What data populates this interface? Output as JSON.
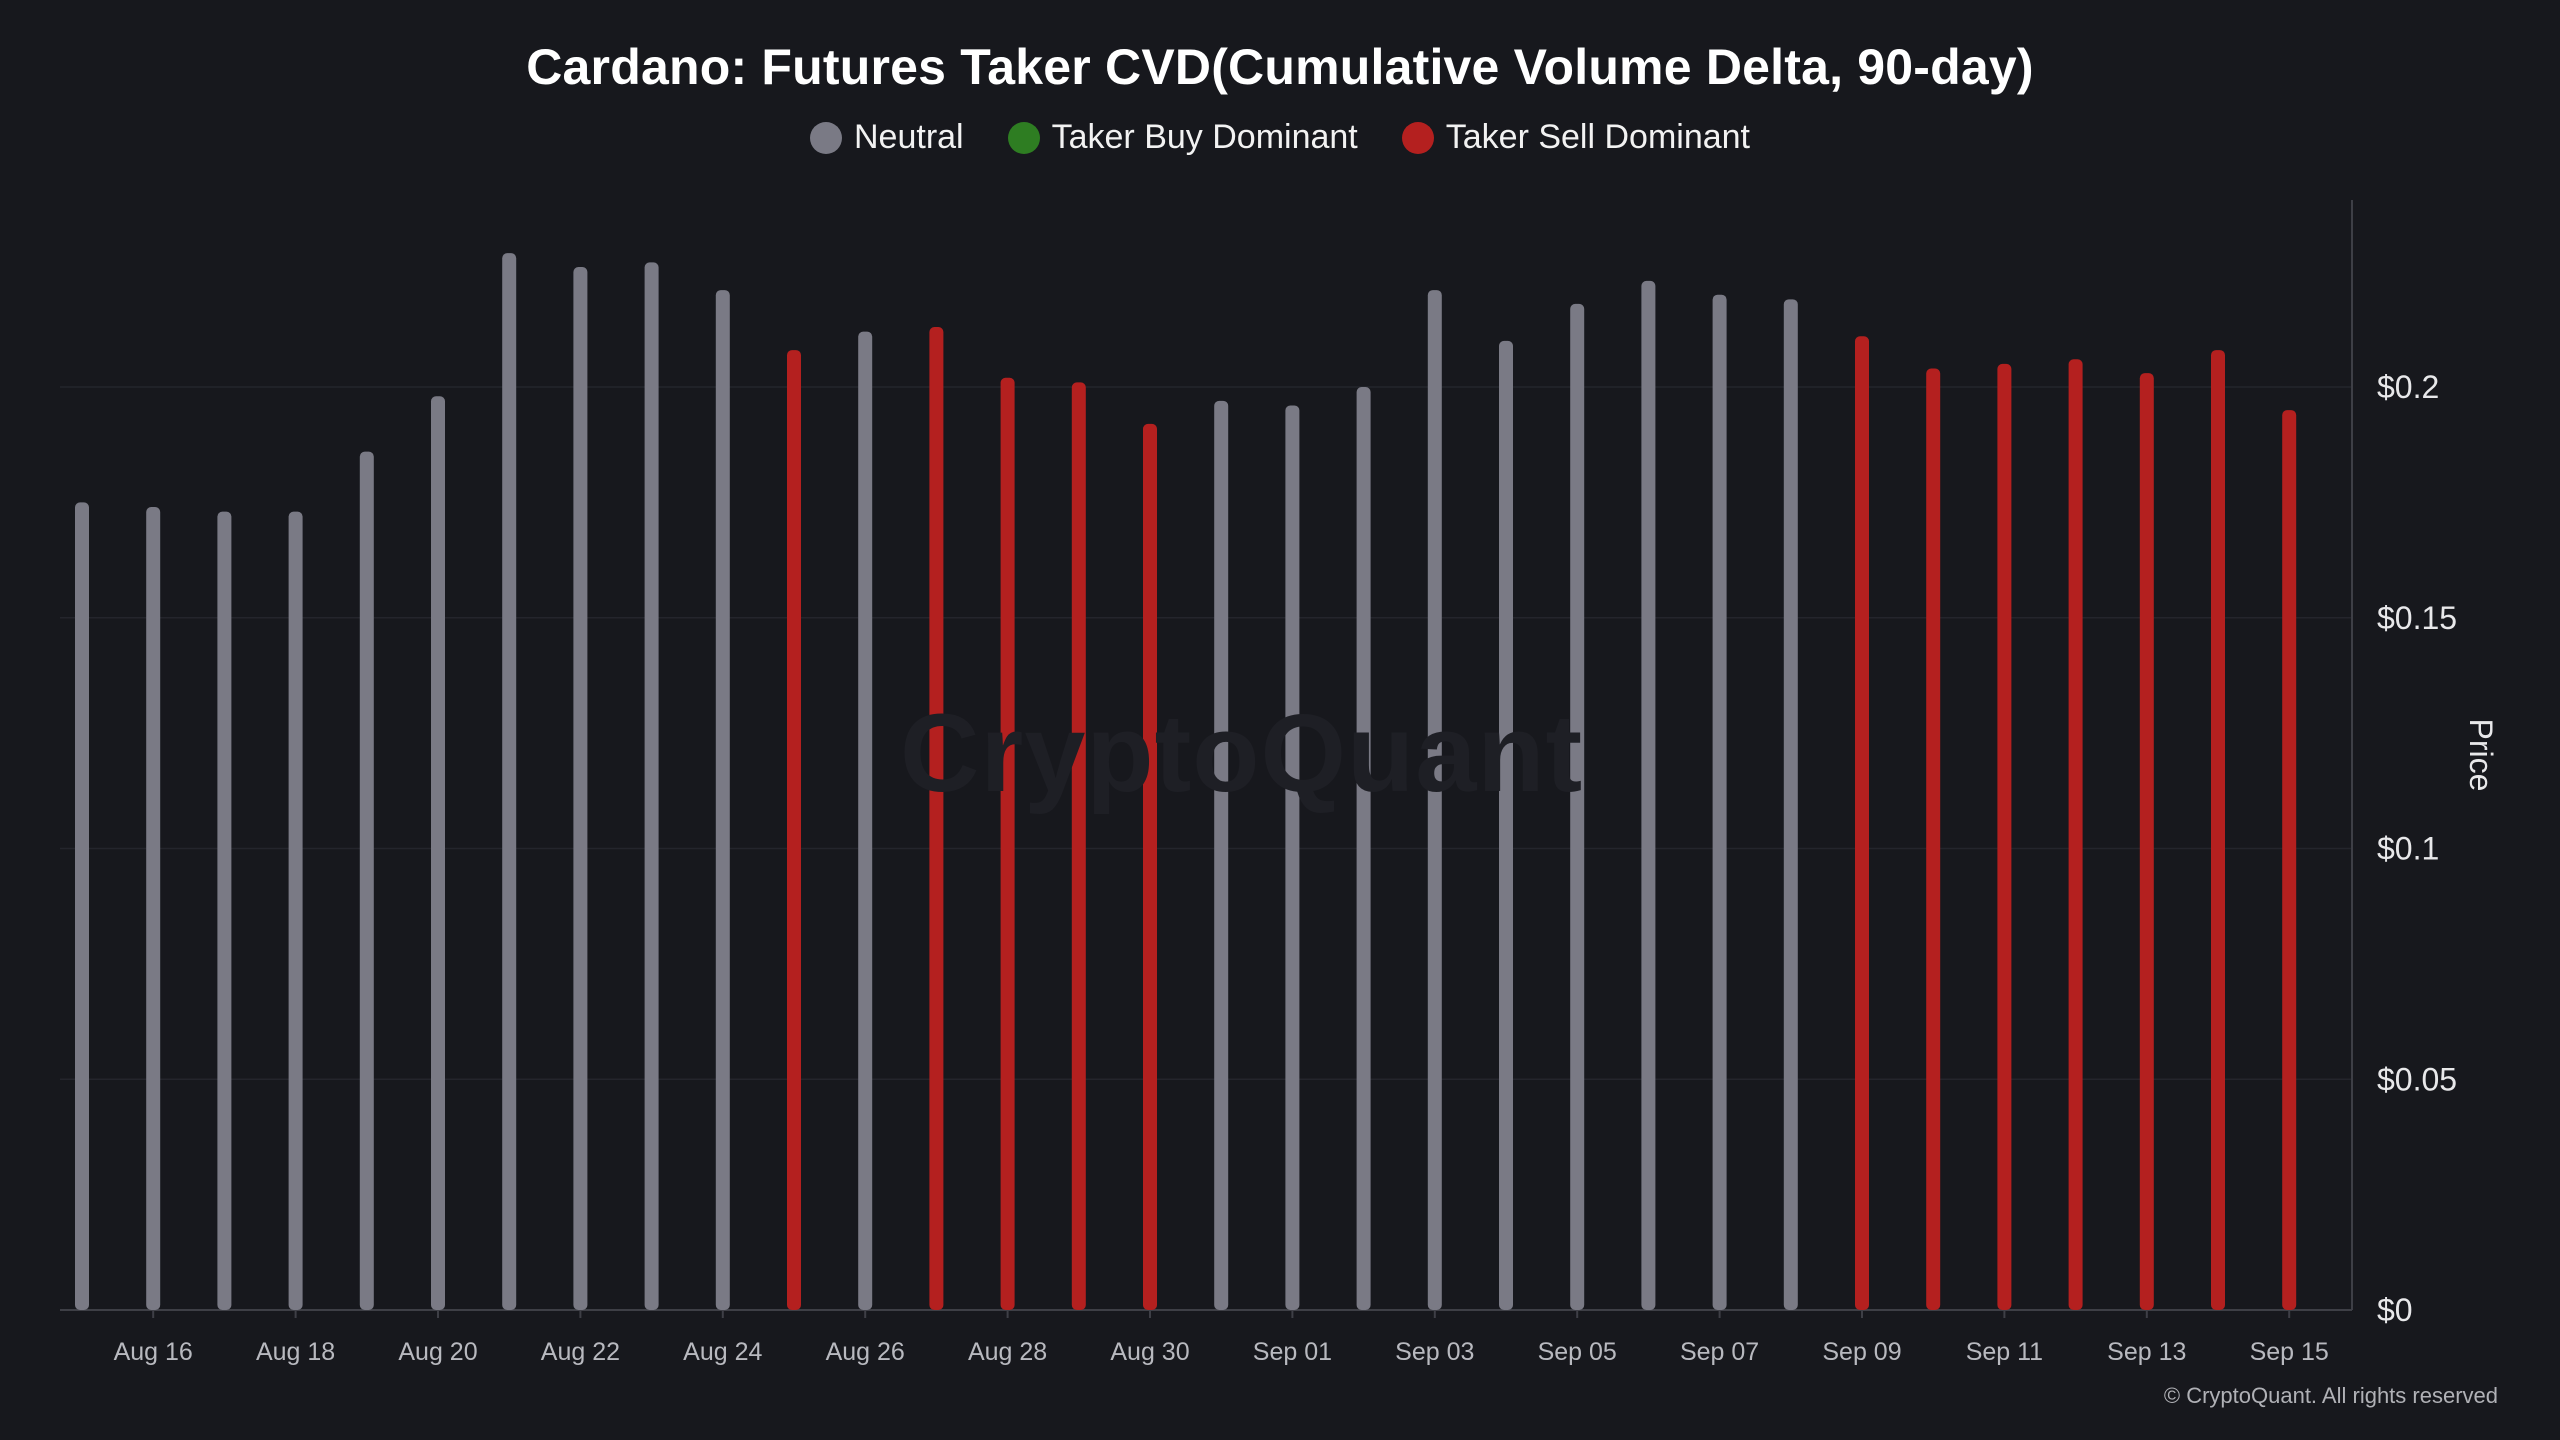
{
  "title": "Cardano: Futures Taker CVD(Cumulative Volume Delta, 90-day)",
  "legend": [
    {
      "label": "Neutral",
      "color": "#7a7a85"
    },
    {
      "label": "Taker Buy Dominant",
      "color": "#2e7d22"
    },
    {
      "label": "Taker Sell Dominant",
      "color": "#b4201f"
    }
  ],
  "watermark": "CryptoQuant",
  "copyright": "© CryptoQuant. All rights reserved",
  "chart_data": {
    "type": "bar",
    "ylabel": "Price",
    "ylim": [
      0,
      0.24
    ],
    "yticks": [
      {
        "value": 0,
        "label": "$0"
      },
      {
        "value": 0.05,
        "label": "$0.05"
      },
      {
        "value": 0.1,
        "label": "$0.1"
      },
      {
        "value": 0.15,
        "label": "$0.15"
      },
      {
        "value": 0.2,
        "label": "$0.2"
      }
    ],
    "x_tick_labels": [
      "Aug 16",
      "Aug 18",
      "Aug 20",
      "Aug 22",
      "Aug 24",
      "Aug 26",
      "Aug 28",
      "Aug 30",
      "Sep 01",
      "Sep 03",
      "Sep 05",
      "Sep 07",
      "Sep 09",
      "Sep 11",
      "Sep 13",
      "Sep 15"
    ],
    "grid": true,
    "legend_position": "top-center",
    "series": [
      {
        "name": "Neutral",
        "color": "#7a7a85",
        "values": [
          {
            "date": "Aug 15",
            "value": 0.175
          },
          {
            "date": "Aug 16",
            "value": 0.174
          },
          {
            "date": "Aug 17",
            "value": 0.173
          },
          {
            "date": "Aug 18",
            "value": 0.173
          },
          {
            "date": "Aug 19",
            "value": 0.186
          },
          {
            "date": "Aug 20",
            "value": 0.198
          },
          {
            "date": "Aug 21",
            "value": 0.229
          },
          {
            "date": "Aug 22",
            "value": 0.226
          },
          {
            "date": "Aug 23",
            "value": 0.227
          },
          {
            "date": "Aug 24",
            "value": 0.221
          },
          {
            "date": "Aug 26",
            "value": 0.212
          },
          {
            "date": "Aug 31",
            "value": 0.197
          },
          {
            "date": "Sep 01",
            "value": 0.196
          },
          {
            "date": "Sep 02",
            "value": 0.2
          },
          {
            "date": "Sep 03",
            "value": 0.221
          },
          {
            "date": "Sep 04",
            "value": 0.21
          },
          {
            "date": "Sep 05",
            "value": 0.218
          },
          {
            "date": "Sep 06",
            "value": 0.223
          },
          {
            "date": "Sep 07",
            "value": 0.22
          },
          {
            "date": "Sep 08",
            "value": 0.219
          }
        ]
      },
      {
        "name": "Taker Buy Dominant",
        "color": "#2e7d22",
        "values": []
      },
      {
        "name": "Taker Sell Dominant",
        "color": "#b4201f",
        "values": [
          {
            "date": "Aug 25",
            "value": 0.208
          },
          {
            "date": "Aug 27",
            "value": 0.213
          },
          {
            "date": "Aug 28",
            "value": 0.202
          },
          {
            "date": "Aug 29",
            "value": 0.201
          },
          {
            "date": "Aug 30",
            "value": 0.192
          },
          {
            "date": "Sep 09",
            "value": 0.211
          },
          {
            "date": "Sep 10",
            "value": 0.204
          },
          {
            "date": "Sep 11",
            "value": 0.205
          },
          {
            "date": "Sep 12",
            "value": 0.206
          },
          {
            "date": "Sep 13",
            "value": 0.203
          },
          {
            "date": "Sep 14",
            "value": 0.208
          },
          {
            "date": "Sep 15",
            "value": 0.195
          }
        ]
      }
    ]
  }
}
